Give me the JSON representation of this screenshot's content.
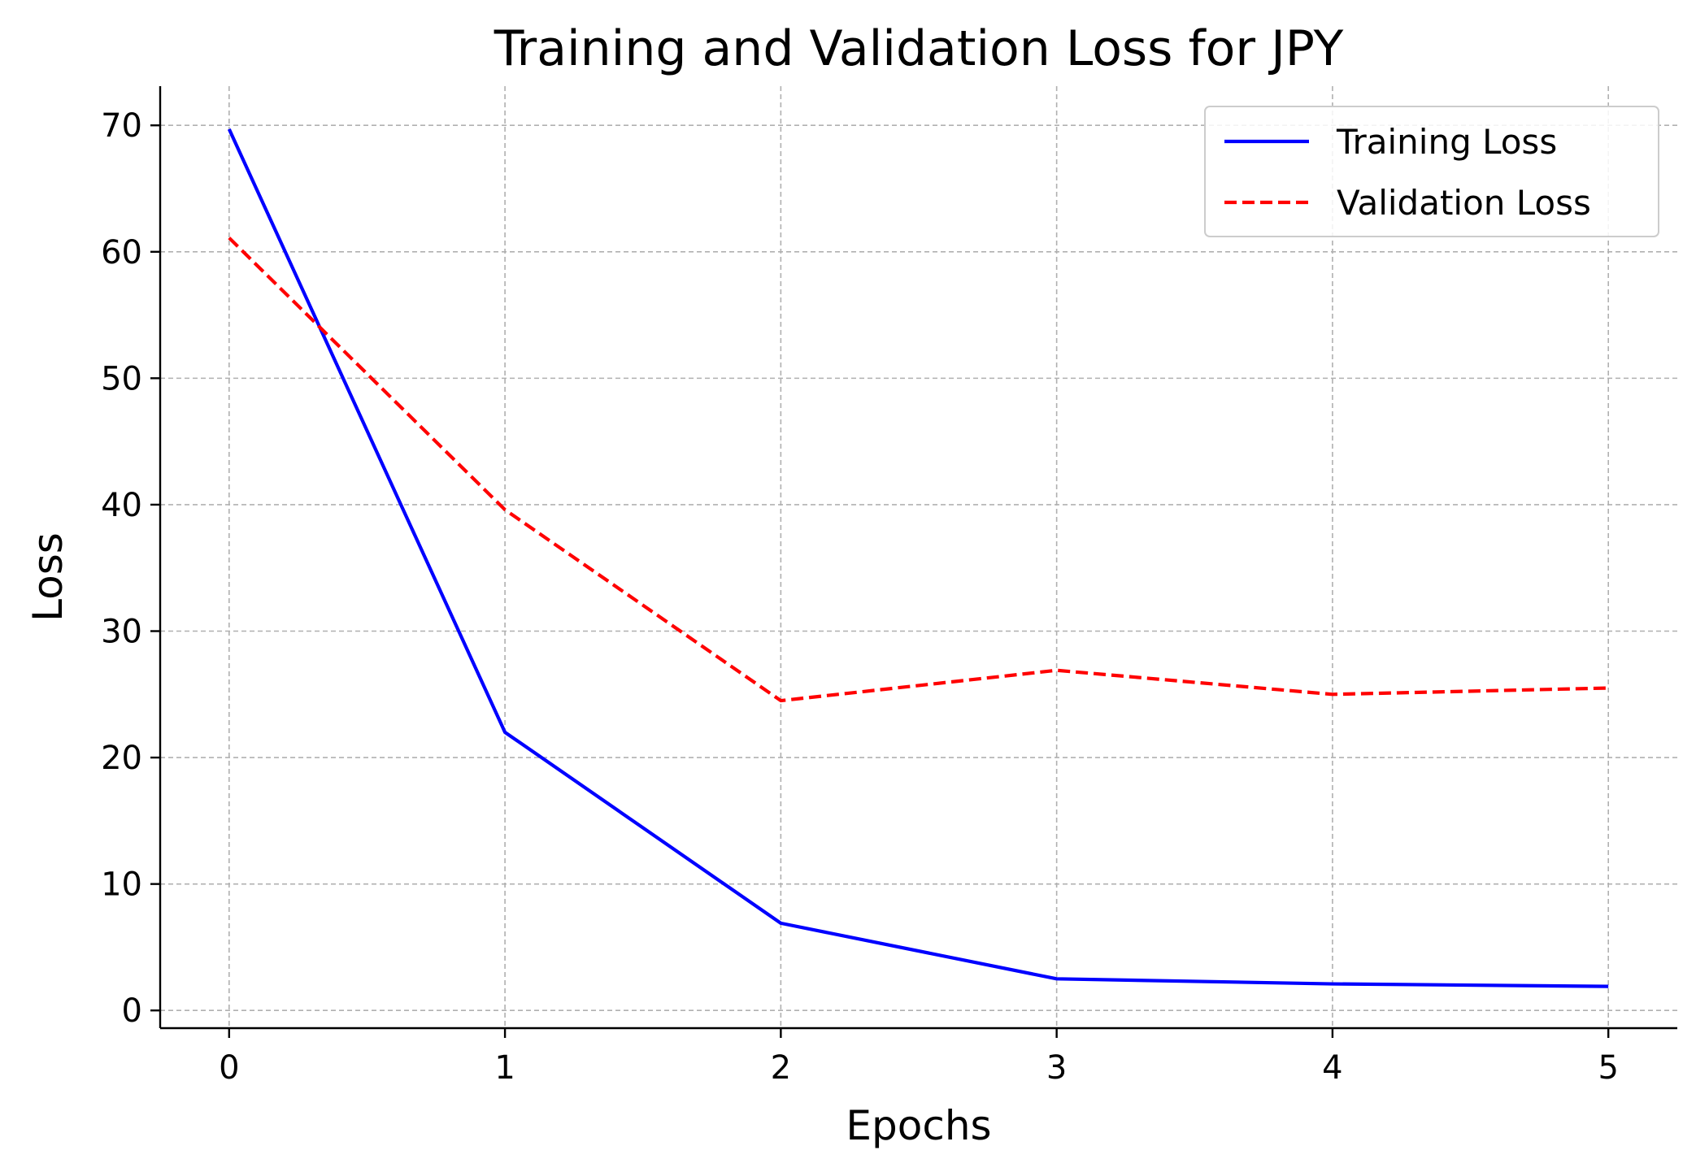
{
  "chart_data": {
    "type": "line",
    "title": "Training and Validation Loss for JPY",
    "xlabel": "Epochs",
    "ylabel": "Loss",
    "x": [
      0,
      1,
      2,
      3,
      4,
      5
    ],
    "series": [
      {
        "name": "Training Loss",
        "values": [
          69.7,
          22.0,
          6.9,
          2.5,
          2.1,
          1.9
        ],
        "color": "#0000ff",
        "style": "solid"
      },
      {
        "name": "Validation Loss",
        "values": [
          61.1,
          39.6,
          24.5,
          26.9,
          25.0,
          25.5
        ],
        "color": "#ff0000",
        "style": "dashed"
      }
    ],
    "xlim": [
      -0.25,
      5.25
    ],
    "ylim": [
      -1.4,
      73.1
    ],
    "xticks": [
      0,
      1,
      2,
      3,
      4,
      5
    ],
    "yticks": [
      0,
      10,
      20,
      30,
      40,
      50,
      60,
      70
    ],
    "grid": true,
    "legend_position": "top-right"
  }
}
